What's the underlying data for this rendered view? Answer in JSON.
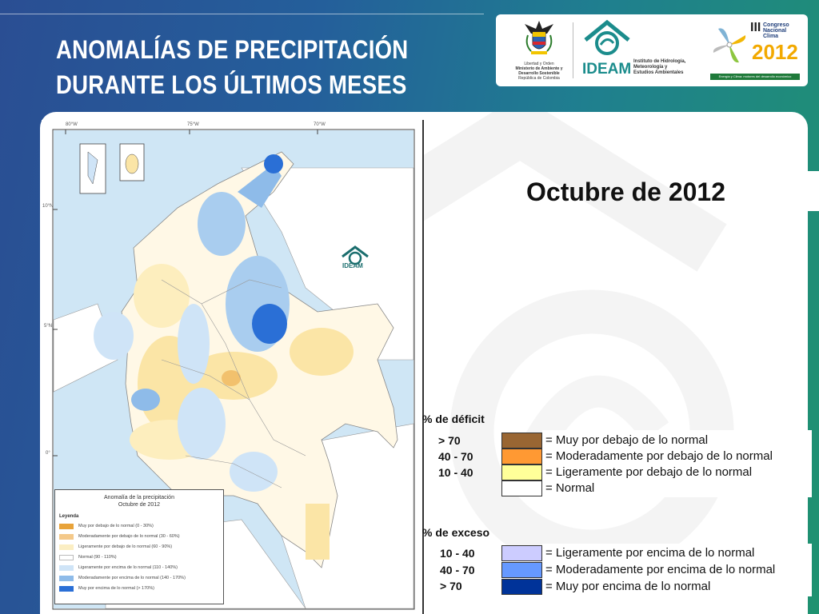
{
  "title": {
    "line1": "ANOMALÍAS DE PRECIPITACIÓN",
    "line2": "DURANTE LOS ÚLTIMOS MESES"
  },
  "logos": {
    "ministry_lines": [
      "Libertad y Orden",
      "Ministerio de Ambiente y",
      "Desarrollo Sostenible",
      "República de Colombia"
    ],
    "ideam_name": "IDEAM",
    "ideam_desc": [
      "Instituto de Hidrología,",
      "Meteorología y",
      "Estudios Ambientales"
    ],
    "congress_roman": "III",
    "congress_lines": [
      "Congreso",
      "Nacional",
      "Clima"
    ],
    "congress_year": "2012",
    "congress_tagline": "Energía y Clima: motores del desarrollo económico"
  },
  "map": {
    "period": "Octubre de 2012",
    "ideam_label": "IDEAM",
    "lon_ticks": [
      "80°W",
      "75°W",
      "70°W"
    ],
    "lat_ticks": [
      "10°N",
      "5°N",
      "0°"
    ],
    "inner_legend": {
      "title_line1": "Anomalía de la precipitación",
      "title_line2": "Octubre de 2012",
      "header": "Leyenda",
      "items": [
        {
          "label": "Muy por debajo de lo normal (0 - 30%)",
          "color": "#e8a33a"
        },
        {
          "label": "Moderadamente por debajo de lo normal (30 - 60%)",
          "color": "#f4c98a"
        },
        {
          "label": "Ligeramente por debajo de lo normal (60 - 90%)",
          "color": "#fbeec3"
        },
        {
          "label": "Normal (90 - 110%)",
          "color": "#ffffff"
        },
        {
          "label": "Ligeramente por encima de lo normal (110 - 140%)",
          "color": "#cfe4f7"
        },
        {
          "label": "Moderadamente por encima de lo normal (140 - 170%)",
          "color": "#8ebbe9"
        },
        {
          "label": "Muy por encima de lo normal (> 170%)",
          "color": "#2a6fd6"
        }
      ]
    }
  },
  "legend": {
    "deficit_title": "% de déficit",
    "excess_title": "% de exceso",
    "deficit": [
      {
        "range": "> 70",
        "label": "= Muy por debajo de lo normal",
        "color": "#996633"
      },
      {
        "range": "40 -  70",
        "label": "= Moderadamente por debajo de lo normal",
        "color": "#ff9933"
      },
      {
        "range": "10 -  40",
        "label": "= Ligeramente por debajo de lo normal",
        "color": "#ffff99"
      },
      {
        "range": "",
        "label": "= Normal",
        "color": "#ffffff"
      }
    ],
    "excess": [
      {
        "range": "10 -  40",
        "label": "= Ligeramente por encima de lo normal",
        "color": "#ccccff"
      },
      {
        "range": "40 -  70",
        "label": "= Moderadamente por encima de lo normal",
        "color": "#6699ff"
      },
      {
        "range": "> 70",
        "label": "= Muy por encima de lo normal",
        "color": "#003399"
      }
    ]
  }
}
